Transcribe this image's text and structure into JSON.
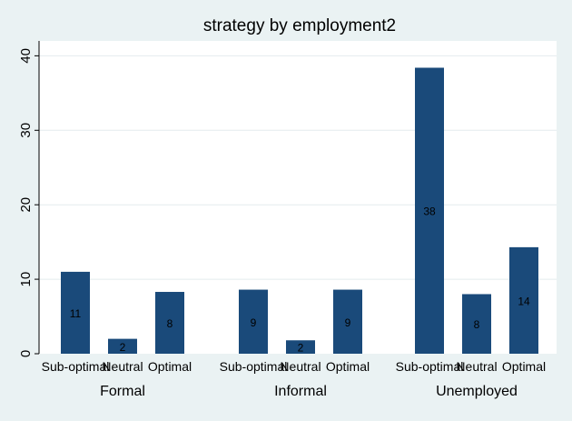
{
  "chart_data": {
    "type": "bar",
    "title": "strategy by employment2",
    "xlabel": "",
    "ylabel": "",
    "ylim": [
      0,
      42
    ],
    "yticks": [
      0,
      10,
      20,
      30,
      40
    ],
    "grid": true,
    "bar_color": "#1a4a7a",
    "groups": [
      {
        "name": "Formal",
        "bars": [
          {
            "category": "Sub-optimal",
            "display": "Sub-optimal",
            "value": 11,
            "label": "11"
          },
          {
            "category": "Neutral",
            "display": "Neutral",
            "value": 2,
            "label": "2"
          },
          {
            "category": "Optimal",
            "display": "Optimal",
            "value": 8.3,
            "label": "8"
          }
        ]
      },
      {
        "name": "Informal",
        "bars": [
          {
            "category": "Sub-optimal",
            "display": "Sub-optimal",
            "value": 8.6,
            "label": "9"
          },
          {
            "category": "Neutral",
            "display": "Neutral",
            "value": 1.8,
            "label": "2"
          },
          {
            "category": "Optimal",
            "display": "Optimal",
            "value": 8.6,
            "label": "9"
          }
        ]
      },
      {
        "name": "Unemployed",
        "bars": [
          {
            "category": "Sub-optimal",
            "display": "Sub-optimal",
            "value": 38.4,
            "label": "38"
          },
          {
            "category": "Neutral",
            "display": "Neutral",
            "value": 8,
            "label": "8"
          },
          {
            "category": "Optimal",
            "display": "Optimal",
            "value": 14.3,
            "label": "14"
          }
        ]
      }
    ]
  }
}
